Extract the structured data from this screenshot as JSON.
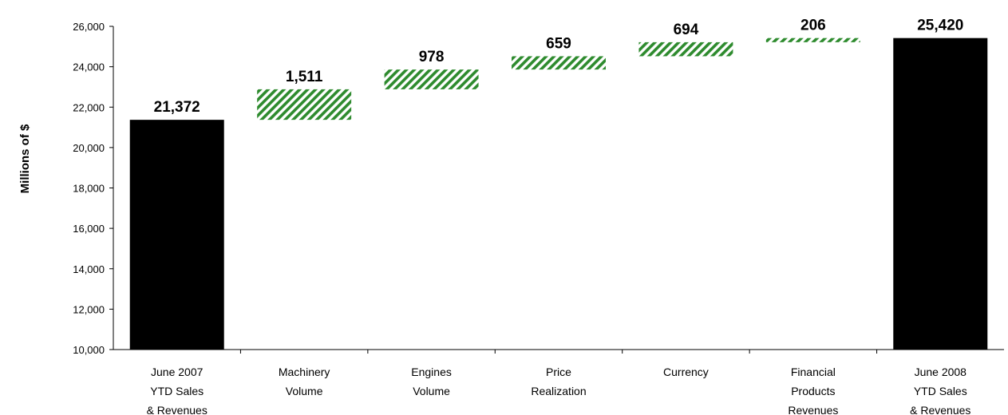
{
  "chart_data": {
    "type": "bar",
    "subtype": "waterfall",
    "title": "",
    "xlabel": "",
    "ylabel": "Millions of $",
    "ylim": [
      10000,
      26000
    ],
    "yticks": [
      "10,000",
      "12,000",
      "14,000",
      "16,000",
      "18,000",
      "20,000",
      "22,000",
      "24,000",
      "26,000"
    ],
    "grid": false,
    "categories": [
      [
        "June 2007",
        "YTD Sales",
        "& Revenues"
      ],
      [
        "Machinery",
        "Volume"
      ],
      [
        "Engines",
        "Volume"
      ],
      [
        "Price",
        "Realization"
      ],
      [
        "Currency"
      ],
      [
        "Financial",
        "Products",
        "Revenues"
      ],
      [
        "June 2008",
        "YTD Sales",
        "& Revenues"
      ]
    ],
    "bars": [
      {
        "kind": "total",
        "start": 10000,
        "end": 21372,
        "label": "21,372"
      },
      {
        "kind": "delta",
        "start": 21372,
        "end": 22883,
        "label": "1,511"
      },
      {
        "kind": "delta",
        "start": 22883,
        "end": 23861,
        "label": "978"
      },
      {
        "kind": "delta",
        "start": 23861,
        "end": 24520,
        "label": "659"
      },
      {
        "kind": "delta",
        "start": 24520,
        "end": 25214,
        "label": "694"
      },
      {
        "kind": "delta",
        "start": 25214,
        "end": 25420,
        "label": "206"
      },
      {
        "kind": "total",
        "start": 10000,
        "end": 25420,
        "label": "25,420"
      }
    ],
    "colors": {
      "total": "#000000",
      "delta_stripe": "#2e8b2e",
      "delta_bg": "#ffffff"
    }
  }
}
